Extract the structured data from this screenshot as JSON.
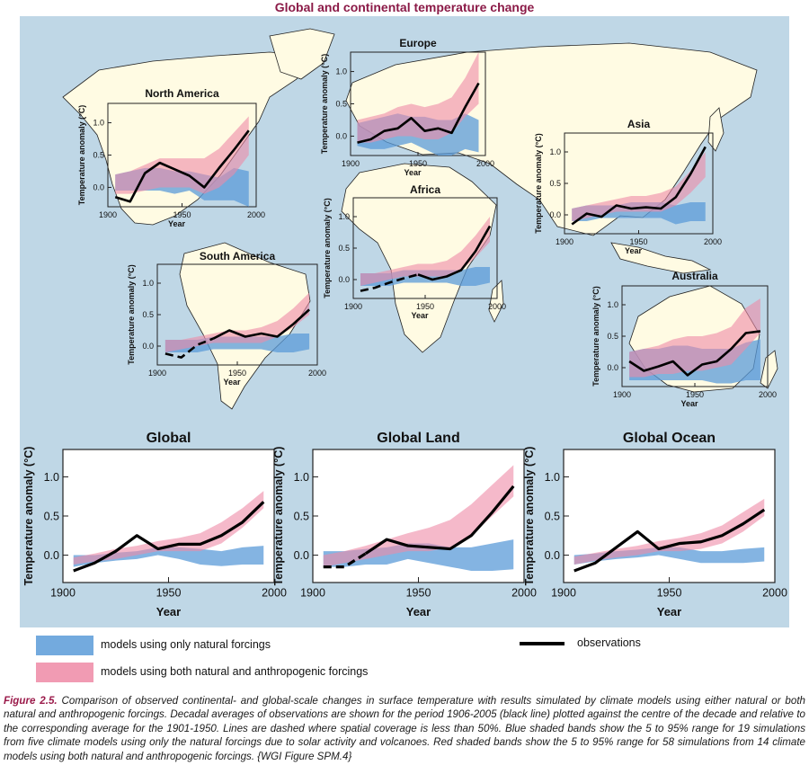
{
  "title": "Global and continental temperature change",
  "colors": {
    "natural": "#5b9bd8",
    "both": "#ef8aa6",
    "overlap": "#a07ab5",
    "observations": "#000000",
    "title": "#8b1a47",
    "land": "#fffbe3",
    "ocean": "#bfd7e6"
  },
  "legend": {
    "natural": "models using only natural forcings",
    "both": "models using both natural and anthropogenic forcings",
    "observations": "observations"
  },
  "caption": {
    "figure_label": "Figure 2.5.",
    "text": "Comparison of observed continental- and global-scale changes in surface temperature with results simulated by climate models using either natural or both natural and anthropogenic forcings. Decadal averages of observations are shown for the period 1906-2005 (black line) plotted against the centre of the decade and relative to the corresponding average for the 1901-1950. Lines are dashed where spatial coverage is less than 50%. Blue shaded bands show the 5 to 95% range for 19 simulations from five climate models using only the natural forcings due to solar activity and volcanoes. Red shaded bands show the 5 to 95% range for 58 simulations from 14 climate models using both natural and anthropogenic forcings. {WGI Figure SPM.4}"
  },
  "chart_data": [
    {
      "type": "line",
      "title": "North America",
      "xlabel": "Year",
      "ylabel": "Temperature anomaly (°C)",
      "xlim": [
        1900,
        2000
      ],
      "ylim": [
        -0.3,
        1.3
      ],
      "x": [
        1905,
        1915,
        1925,
        1935,
        1945,
        1955,
        1965,
        1975,
        1985,
        1995
      ],
      "observations": [
        -0.15,
        -0.22,
        0.22,
        0.38,
        0.28,
        0.18,
        0.0,
        0.3,
        0.58,
        0.88
      ],
      "dashed_until": 0,
      "natural_low": [
        -0.05,
        -0.05,
        -0.05,
        -0.05,
        -0.1,
        -0.05,
        -0.2,
        -0.2,
        -0.2,
        -0.3
      ],
      "natural_high": [
        0.2,
        0.25,
        0.3,
        0.3,
        0.25,
        0.25,
        0.2,
        0.15,
        0.3,
        0.25
      ],
      "both_low": [
        -0.1,
        -0.1,
        -0.05,
        0.0,
        0.0,
        0.0,
        -0.1,
        0.0,
        0.2,
        0.5
      ],
      "both_high": [
        0.2,
        0.25,
        0.35,
        0.45,
        0.45,
        0.45,
        0.45,
        0.6,
        0.85,
        1.1
      ]
    },
    {
      "type": "line",
      "title": "Europe",
      "xlabel": "Year",
      "ylabel": "Temperature anomaly (°C)",
      "xlim": [
        1900,
        2000
      ],
      "ylim": [
        -0.3,
        1.3
      ],
      "x": [
        1905,
        1915,
        1925,
        1935,
        1945,
        1955,
        1965,
        1975,
        1985,
        1995
      ],
      "observations": [
        -0.1,
        -0.05,
        0.08,
        0.12,
        0.28,
        0.08,
        0.12,
        0.05,
        0.45,
        0.82
      ],
      "dashed_until": 0,
      "natural_low": [
        -0.15,
        -0.2,
        -0.2,
        -0.15,
        -0.1,
        -0.2,
        -0.3,
        -0.3,
        -0.2,
        -0.25
      ],
      "natural_high": [
        0.2,
        0.25,
        0.3,
        0.35,
        0.3,
        0.3,
        0.25,
        0.25,
        0.35,
        0.25
      ],
      "both_low": [
        -0.1,
        -0.1,
        -0.05,
        0.0,
        0.0,
        -0.05,
        -0.05,
        0.05,
        0.3,
        0.5
      ],
      "both_high": [
        0.25,
        0.3,
        0.35,
        0.45,
        0.5,
        0.45,
        0.5,
        0.6,
        0.9,
        1.3
      ]
    },
    {
      "type": "line",
      "title": "Asia",
      "xlabel": "Year",
      "ylabel": "Temperature anomaly (°C)",
      "xlim": [
        1900,
        2000
      ],
      "ylim": [
        -0.3,
        1.3
      ],
      "x": [
        1905,
        1915,
        1925,
        1935,
        1945,
        1955,
        1965,
        1975,
        1985,
        1995
      ],
      "observations": [
        -0.15,
        0.02,
        -0.03,
        0.15,
        0.1,
        0.12,
        0.1,
        0.28,
        0.65,
        1.08
      ],
      "dashed_until": 0,
      "natural_low": [
        -0.1,
        -0.1,
        -0.05,
        -0.05,
        -0.05,
        -0.05,
        -0.05,
        -0.15,
        -0.1,
        -0.1
      ],
      "natural_high": [
        0.1,
        0.15,
        0.15,
        0.15,
        0.2,
        0.2,
        0.2,
        0.15,
        0.2,
        0.2
      ],
      "both_low": [
        -0.1,
        -0.05,
        0.0,
        0.05,
        0.05,
        0.05,
        0.05,
        0.15,
        0.35,
        0.6
      ],
      "both_high": [
        0.1,
        0.15,
        0.2,
        0.25,
        0.3,
        0.3,
        0.35,
        0.45,
        0.7,
        1.0
      ]
    },
    {
      "type": "line",
      "title": "Africa",
      "xlabel": "Year",
      "ylabel": "Temperature anomaly (°C)",
      "xlim": [
        1900,
        2000
      ],
      "ylim": [
        -0.3,
        1.3
      ],
      "x": [
        1905,
        1915,
        1925,
        1935,
        1945,
        1955,
        1965,
        1975,
        1985,
        1995
      ],
      "observations": [
        -0.18,
        -0.13,
        -0.05,
        0.02,
        0.08,
        0.0,
        0.05,
        0.15,
        0.45,
        0.85
      ],
      "dashed_until": 4,
      "natural_low": [
        -0.1,
        -0.1,
        -0.1,
        -0.05,
        -0.05,
        -0.05,
        -0.05,
        -0.1,
        -0.1,
        -0.05
      ],
      "natural_high": [
        0.1,
        0.1,
        0.1,
        0.15,
        0.15,
        0.15,
        0.15,
        0.15,
        0.2,
        0.2
      ],
      "both_low": [
        -0.1,
        -0.05,
        0.0,
        0.05,
        0.05,
        0.05,
        0.05,
        0.15,
        0.35,
        0.6
      ],
      "both_high": [
        0.1,
        0.1,
        0.15,
        0.2,
        0.25,
        0.25,
        0.3,
        0.45,
        0.7,
        1.0
      ]
    },
    {
      "type": "line",
      "title": "South America",
      "xlabel": "Year",
      "ylabel": "Temperature anomaly (°C)",
      "xlim": [
        1900,
        2000
      ],
      "ylim": [
        -0.3,
        1.3
      ],
      "x": [
        1905,
        1915,
        1925,
        1935,
        1945,
        1955,
        1965,
        1975,
        1985,
        1995
      ],
      "observations": [
        -0.12,
        -0.18,
        0.02,
        0.12,
        0.25,
        0.15,
        0.2,
        0.15,
        0.35,
        0.58
      ],
      "dashed_until": 3,
      "natural_low": [
        -0.1,
        -0.1,
        -0.1,
        -0.05,
        -0.05,
        -0.05,
        -0.05,
        -0.1,
        -0.1,
        -0.05
      ],
      "natural_high": [
        0.1,
        0.1,
        0.1,
        0.15,
        0.15,
        0.15,
        0.15,
        0.15,
        0.2,
        0.2
      ],
      "both_low": [
        -0.1,
        -0.05,
        0.0,
        0.05,
        0.05,
        0.05,
        0.05,
        0.15,
        0.3,
        0.5
      ],
      "both_high": [
        0.1,
        0.1,
        0.15,
        0.2,
        0.25,
        0.25,
        0.3,
        0.4,
        0.6,
        0.85
      ]
    },
    {
      "type": "line",
      "title": "Australia",
      "xlabel": "Year",
      "ylabel": "Temperature anomaly (°C)",
      "xlim": [
        1900,
        2000
      ],
      "ylim": [
        -0.3,
        1.3
      ],
      "x": [
        1905,
        1915,
        1925,
        1935,
        1945,
        1955,
        1965,
        1975,
        1985,
        1995
      ],
      "observations": [
        0.1,
        -0.05,
        0.02,
        0.1,
        -0.12,
        0.05,
        0.1,
        0.3,
        0.55,
        0.58
      ],
      "dashed_until": 0,
      "natural_low": [
        -0.2,
        -0.2,
        -0.2,
        -0.2,
        -0.2,
        -0.2,
        -0.25,
        -0.25,
        -0.2,
        -0.2
      ],
      "natural_high": [
        0.25,
        0.3,
        0.3,
        0.35,
        0.35,
        0.3,
        0.3,
        0.3,
        0.4,
        0.45
      ],
      "both_low": [
        -0.15,
        -0.15,
        -0.1,
        -0.1,
        -0.05,
        -0.05,
        0.0,
        0.05,
        0.3,
        0.55
      ],
      "both_high": [
        0.25,
        0.3,
        0.35,
        0.45,
        0.5,
        0.5,
        0.55,
        0.65,
        0.95,
        1.1
      ]
    },
    {
      "type": "line",
      "title": "Global",
      "xlabel": "Year",
      "ylabel": "Temperature anomaly (°C)",
      "xlim": [
        1900,
        2000
      ],
      "ylim": [
        -0.35,
        1.35
      ],
      "x": [
        1905,
        1915,
        1925,
        1935,
        1945,
        1955,
        1965,
        1975,
        1985,
        1995
      ],
      "observations": [
        -0.2,
        -0.1,
        0.05,
        0.25,
        0.08,
        0.14,
        0.14,
        0.25,
        0.42,
        0.68
      ],
      "dashed_until": 0,
      "natural_low": [
        -0.15,
        -0.1,
        -0.07,
        -0.05,
        0.0,
        -0.05,
        -0.12,
        -0.14,
        -0.12,
        -0.12
      ],
      "natural_high": [
        0.0,
        0.0,
        0.03,
        0.05,
        0.1,
        0.1,
        0.08,
        0.05,
        0.1,
        0.12
      ],
      "both_low": [
        -0.12,
        -0.08,
        -0.05,
        0.0,
        0.05,
        0.05,
        0.05,
        0.15,
        0.35,
        0.6
      ],
      "both_high": [
        -0.03,
        0.02,
        0.08,
        0.12,
        0.18,
        0.22,
        0.28,
        0.42,
        0.6,
        0.82
      ]
    },
    {
      "type": "line",
      "title": "Global Land",
      "xlabel": "Year",
      "ylabel": "Temperature anomaly (°C)",
      "xlim": [
        1900,
        2000
      ],
      "ylim": [
        -0.35,
        1.35
      ],
      "x": [
        1905,
        1915,
        1925,
        1935,
        1945,
        1955,
        1965,
        1975,
        1985,
        1995
      ],
      "observations": [
        -0.15,
        -0.15,
        0.02,
        0.2,
        0.12,
        0.1,
        0.08,
        0.25,
        0.55,
        0.88
      ],
      "dashed_until": 2,
      "natural_low": [
        -0.15,
        -0.15,
        -0.12,
        -0.12,
        -0.05,
        -0.1,
        -0.15,
        -0.2,
        -0.2,
        -0.18
      ],
      "natural_high": [
        0.05,
        0.05,
        0.08,
        0.1,
        0.15,
        0.15,
        0.1,
        0.1,
        0.15,
        0.2
      ],
      "both_low": [
        -0.15,
        -0.1,
        -0.05,
        0.0,
        0.05,
        0.05,
        0.1,
        0.25,
        0.5,
        0.75
      ],
      "both_high": [
        0.0,
        0.05,
        0.12,
        0.2,
        0.28,
        0.35,
        0.45,
        0.65,
        0.9,
        1.15
      ]
    },
    {
      "type": "line",
      "title": "Global Ocean",
      "xlabel": "Year",
      "ylabel": "Temperature anomaly (°C)",
      "xlim": [
        1900,
        2000
      ],
      "ylim": [
        -0.35,
        1.35
      ],
      "x": [
        1905,
        1915,
        1925,
        1935,
        1945,
        1955,
        1965,
        1975,
        1985,
        1995
      ],
      "observations": [
        -0.2,
        -0.1,
        0.1,
        0.3,
        0.08,
        0.15,
        0.17,
        0.25,
        0.4,
        0.58
      ],
      "dashed_until": 0,
      "natural_low": [
        -0.12,
        -0.08,
        -0.05,
        -0.03,
        0.0,
        -0.05,
        -0.1,
        -0.1,
        -0.1,
        -0.08
      ],
      "natural_high": [
        0.0,
        0.02,
        0.05,
        0.07,
        0.1,
        0.1,
        0.05,
        0.05,
        0.08,
        0.1
      ],
      "both_low": [
        -0.12,
        -0.07,
        -0.03,
        0.0,
        0.05,
        0.05,
        0.08,
        0.15,
        0.3,
        0.5
      ],
      "both_high": [
        -0.02,
        0.03,
        0.08,
        0.12,
        0.18,
        0.22,
        0.28,
        0.38,
        0.55,
        0.72
      ]
    }
  ]
}
